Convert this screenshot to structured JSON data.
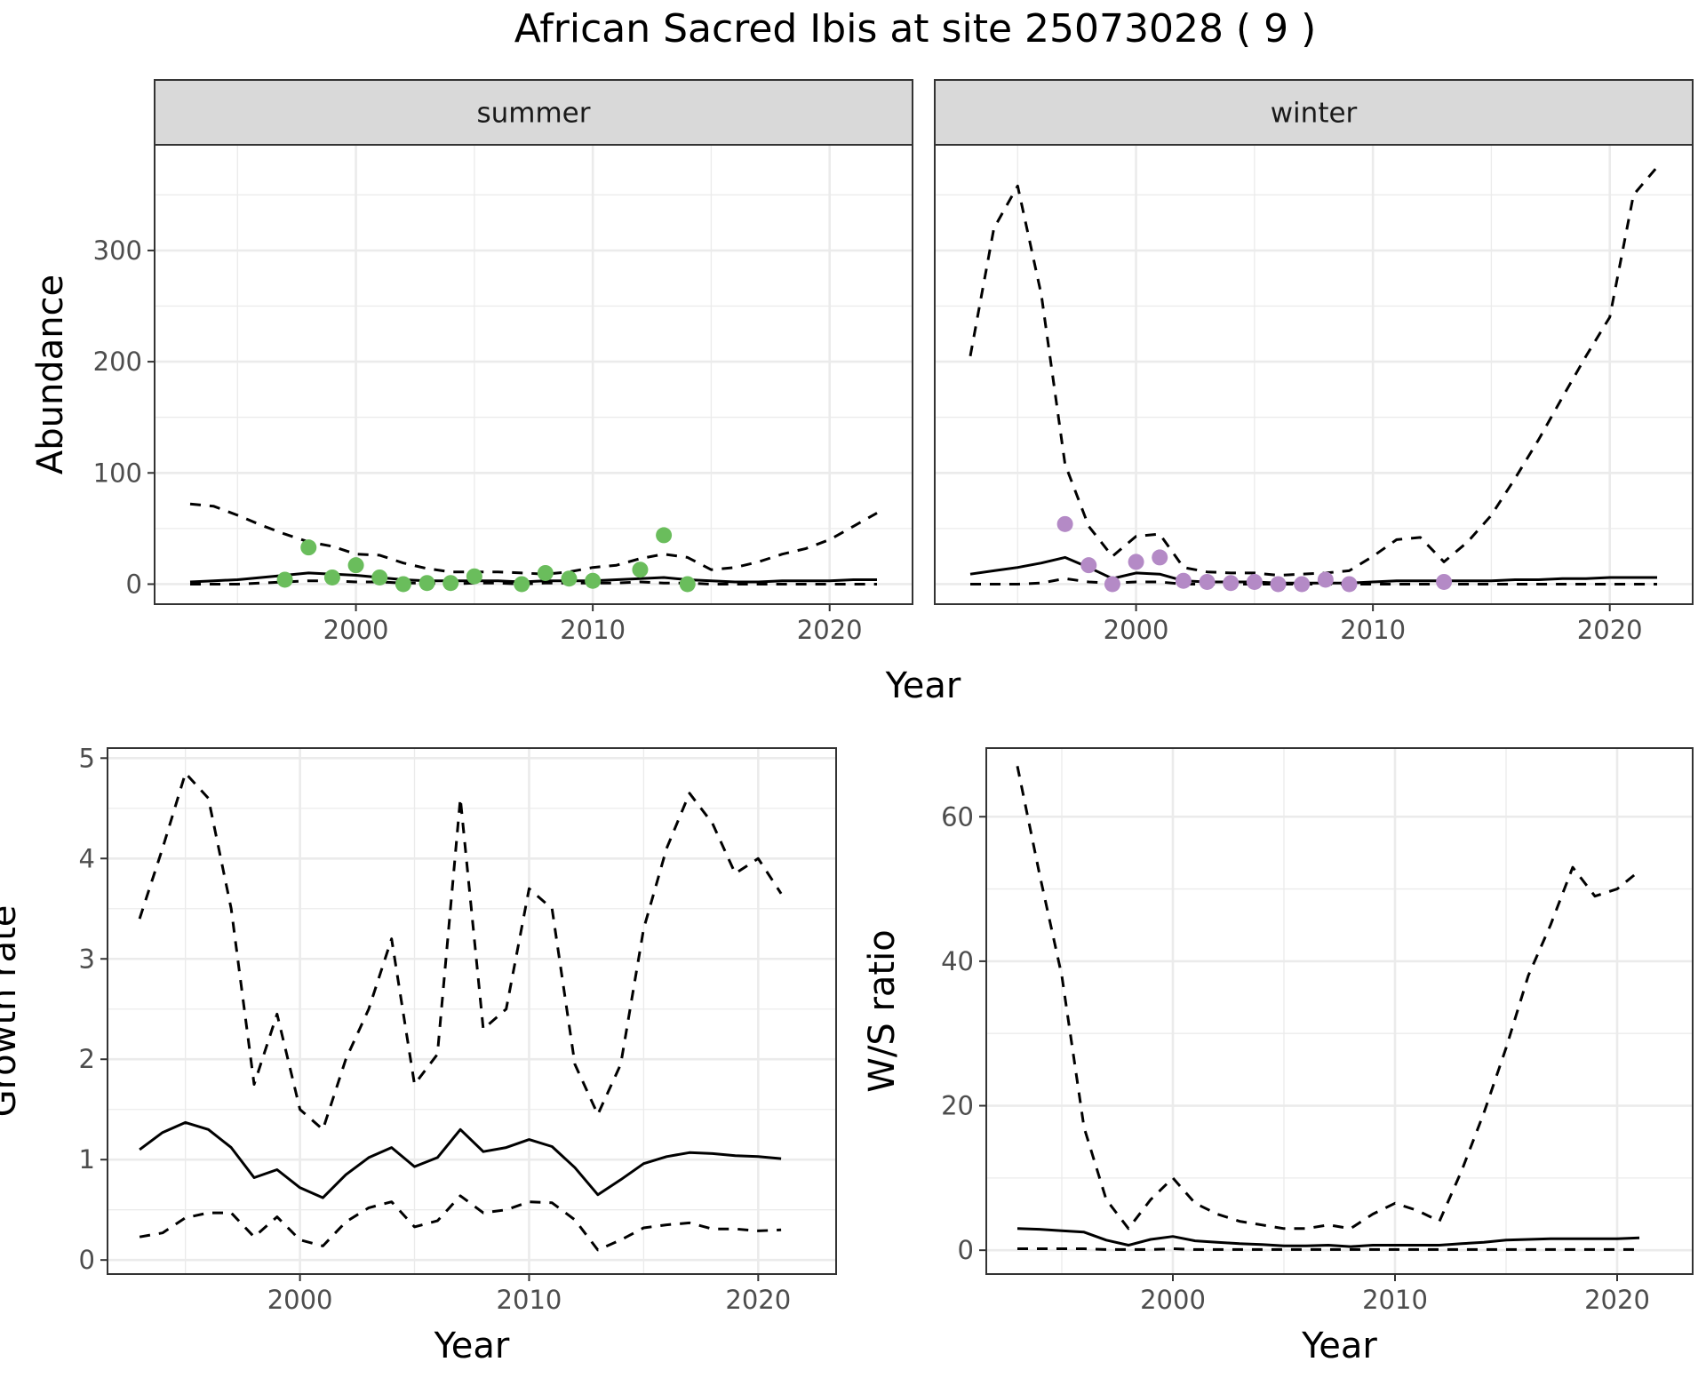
{
  "title": "African Sacred Ibis at site 25073028 ( 9 )",
  "colors": {
    "summer_points": "#6abd5c",
    "winter_points": "#b48ac6",
    "line": "#000000",
    "grid": "#ebebeb",
    "strip": "#d9d9d9",
    "axis_text": "#4d4d4d"
  },
  "chart_data": [
    {
      "type": "line",
      "panel": "summer",
      "strip_label": "summer",
      "ylabel": "Abundance",
      "xlabel": "Year",
      "xlim": [
        1991.5,
        2023.5
      ],
      "ylim": [
        -18,
        395
      ],
      "xticks": [
        2000,
        2010,
        2020
      ],
      "yticks": [
        0,
        100,
        200,
        300
      ],
      "grid": true,
      "series": [
        {
          "style": "dashed",
          "x": [
            1993,
            1994,
            1995,
            1996,
            1997,
            1998,
            1999,
            2000,
            2001,
            2002,
            2003,
            2004,
            2005,
            2006,
            2007,
            2008,
            2009,
            2010,
            2011,
            2012,
            2013,
            2014,
            2015,
            2016,
            2017,
            2018,
            2019,
            2020,
            2021,
            2022
          ],
          "y": [
            72,
            70,
            62,
            53,
            45,
            38,
            34,
            27,
            26,
            19,
            14,
            11,
            11,
            11,
            10,
            9,
            11,
            15,
            17,
            23,
            27,
            24,
            13,
            15,
            20,
            27,
            32,
            40,
            52,
            64
          ]
        },
        {
          "style": "solid",
          "x": [
            1993,
            1994,
            1995,
            1996,
            1997,
            1998,
            1999,
            2000,
            2001,
            2002,
            2003,
            2004,
            2005,
            2006,
            2007,
            2008,
            2009,
            2010,
            2011,
            2012,
            2013,
            2014,
            2015,
            2016,
            2017,
            2018,
            2019,
            2020,
            2021,
            2022
          ],
          "y": [
            2,
            3,
            4,
            6,
            8,
            10,
            9,
            8,
            6,
            4,
            3,
            3,
            3,
            3,
            2,
            3,
            3,
            3,
            4,
            5,
            6,
            4,
            3,
            2,
            2,
            3,
            3,
            3,
            4,
            4
          ]
        },
        {
          "style": "dashed",
          "x": [
            1993,
            1994,
            1995,
            1996,
            1997,
            1998,
            1999,
            2000,
            2001,
            2002,
            2003,
            2004,
            2005,
            2006,
            2007,
            2008,
            2009,
            2010,
            2011,
            2012,
            2013,
            2014,
            2015,
            2016,
            2017,
            2018,
            2019,
            2020,
            2021,
            2022
          ],
          "y": [
            0,
            0,
            0,
            1,
            2,
            3,
            3,
            2,
            2,
            1,
            1,
            0,
            1,
            1,
            0,
            1,
            1,
            1,
            1,
            2,
            1,
            1,
            0,
            0,
            0,
            0,
            0,
            0,
            0,
            0
          ]
        },
        {
          "style": "points",
          "x": [
            1997,
            1998,
            1999,
            2000,
            2001,
            2002,
            2003,
            2004,
            2005,
            2007,
            2008,
            2009,
            2010,
            2012,
            2013,
            2014
          ],
          "y": [
            4,
            33,
            6,
            17,
            6,
            0,
            1,
            1,
            7,
            0,
            10,
            5,
            3,
            13,
            44,
            0
          ]
        }
      ]
    },
    {
      "type": "line",
      "panel": "winter",
      "strip_label": "winter",
      "xlabel": "Year",
      "xlim": [
        1991.5,
        2023.5
      ],
      "ylim": [
        -18,
        395
      ],
      "xticks": [
        2000,
        2010,
        2020
      ],
      "yticks": [
        0,
        100,
        200,
        300
      ],
      "grid": true,
      "series": [
        {
          "style": "dashed",
          "x": [
            1993,
            1994,
            1995,
            1996,
            1997,
            1998,
            1999,
            2000,
            2001,
            2002,
            2003,
            2004,
            2005,
            2006,
            2007,
            2008,
            2009,
            2010,
            2011,
            2012,
            2013,
            2014,
            2015,
            2016,
            2017,
            2018,
            2019,
            2020,
            2021,
            2022
          ],
          "y": [
            205,
            320,
            358,
            260,
            108,
            52,
            25,
            43,
            45,
            15,
            11,
            10,
            10,
            8,
            9,
            10,
            12,
            25,
            40,
            42,
            20,
            38,
            62,
            95,
            130,
            168,
            205,
            240,
            350,
            375
          ]
        },
        {
          "style": "solid",
          "x": [
            1993,
            1994,
            1995,
            1996,
            1997,
            1998,
            1999,
            2000,
            2001,
            2002,
            2003,
            2004,
            2005,
            2006,
            2007,
            2008,
            2009,
            2010,
            2011,
            2012,
            2013,
            2014,
            2015,
            2016,
            2017,
            2018,
            2019,
            2020,
            2021,
            2022
          ],
          "y": [
            9,
            12,
            15,
            19,
            24,
            15,
            5,
            10,
            9,
            3,
            2,
            2,
            2,
            1,
            1,
            1,
            1,
            2,
            3,
            3,
            3,
            3,
            3,
            4,
            4,
            5,
            5,
            6,
            6,
            6
          ]
        },
        {
          "style": "dashed",
          "x": [
            1993,
            1994,
            1995,
            1996,
            1997,
            1998,
            1999,
            2000,
            2001,
            2002,
            2003,
            2004,
            2005,
            2006,
            2007,
            2008,
            2009,
            2010,
            2011,
            2012,
            2013,
            2014,
            2015,
            2016,
            2017,
            2018,
            2019,
            2020,
            2021,
            2022
          ],
          "y": [
            0,
            0,
            0,
            1,
            5,
            2,
            1,
            2,
            2,
            0,
            0,
            0,
            0,
            0,
            0,
            0,
            0,
            0,
            0,
            0,
            0,
            0,
            0,
            0,
            0,
            0,
            0,
            0,
            0,
            0
          ]
        },
        {
          "style": "points",
          "x": [
            1997,
            1998,
            1999,
            2000,
            2001,
            2002,
            2003,
            2004,
            2005,
            2006,
            2007,
            2008,
            2009,
            2013
          ],
          "y": [
            54,
            17,
            0,
            20,
            24,
            3,
            2,
            1,
            2,
            0,
            0,
            4,
            0,
            2
          ]
        }
      ]
    },
    {
      "type": "line",
      "panel": "growth",
      "ylabel": "Growth rate",
      "xlabel": "Year",
      "xlim": [
        1991.6,
        2023.4
      ],
      "ylim": [
        -0.14,
        5.1
      ],
      "xticks": [
        2000,
        2010,
        2020
      ],
      "yticks": [
        0,
        1,
        2,
        3,
        4,
        5
      ],
      "grid": true,
      "series": [
        {
          "style": "dashed",
          "x": [
            1993,
            1994,
            1995,
            1996,
            1997,
            1998,
            1999,
            2000,
            2001,
            2002,
            2003,
            2004,
            2005,
            2006,
            2007,
            2008,
            2009,
            2010,
            2011,
            2012,
            2013,
            2014,
            2015,
            2016,
            2017,
            2018,
            2019,
            2020,
            2021
          ],
          "y": [
            3.4,
            4.1,
            4.85,
            4.6,
            3.5,
            1.75,
            2.45,
            1.5,
            1.3,
            2.0,
            2.5,
            3.2,
            1.75,
            2.05,
            4.6,
            2.3,
            2.5,
            3.7,
            3.5,
            1.95,
            1.45,
            1.95,
            3.3,
            4.1,
            4.65,
            4.35,
            3.85,
            4.0,
            3.65
          ]
        },
        {
          "style": "solid",
          "x": [
            1993,
            1994,
            1995,
            1996,
            1997,
            1998,
            1999,
            2000,
            2001,
            2002,
            2003,
            2004,
            2005,
            2006,
            2007,
            2008,
            2009,
            2010,
            2011,
            2012,
            2013,
            2014,
            2015,
            2016,
            2017,
            2018,
            2019,
            2020,
            2021
          ],
          "y": [
            1.1,
            1.27,
            1.37,
            1.3,
            1.12,
            0.82,
            0.9,
            0.72,
            0.62,
            0.85,
            1.02,
            1.12,
            0.93,
            1.02,
            1.3,
            1.08,
            1.12,
            1.2,
            1.13,
            0.92,
            0.65,
            0.8,
            0.96,
            1.03,
            1.07,
            1.06,
            1.04,
            1.03,
            1.01
          ]
        },
        {
          "style": "dashed",
          "x": [
            1993,
            1994,
            1995,
            1996,
            1997,
            1998,
            1999,
            2000,
            2001,
            2002,
            2003,
            2004,
            2005,
            2006,
            2007,
            2008,
            2009,
            2010,
            2011,
            2012,
            2013,
            2014,
            2015,
            2016,
            2017,
            2018,
            2019,
            2020,
            2021
          ],
          "y": [
            0.23,
            0.27,
            0.42,
            0.47,
            0.47,
            0.23,
            0.43,
            0.2,
            0.14,
            0.38,
            0.52,
            0.58,
            0.33,
            0.39,
            0.64,
            0.47,
            0.5,
            0.58,
            0.57,
            0.4,
            0.1,
            0.2,
            0.32,
            0.35,
            0.37,
            0.31,
            0.31,
            0.29,
            0.3
          ]
        }
      ]
    },
    {
      "type": "line",
      "panel": "ratio",
      "ylabel": "W/S ratio",
      "xlabel": "Year",
      "xlim": [
        1991.6,
        2023.4
      ],
      "ylim": [
        -3.3,
        69.5
      ],
      "xticks": [
        2000,
        2010,
        2020
      ],
      "yticks": [
        0,
        20,
        40,
        60
      ],
      "grid": true,
      "series": [
        {
          "style": "dashed",
          "x": [
            1993,
            1994,
            1995,
            1996,
            1997,
            1998,
            1999,
            2000,
            2001,
            2002,
            2003,
            2004,
            2005,
            2006,
            2007,
            2008,
            2009,
            2010,
            2011,
            2012,
            2013,
            2014,
            2015,
            2016,
            2017,
            2018,
            2019,
            2020,
            2021
          ],
          "y": [
            67,
            52,
            38,
            17,
            7,
            3,
            7,
            10,
            6.5,
            5,
            4,
            3.5,
            3,
            3,
            3.5,
            3,
            5,
            6.5,
            5.5,
            4,
            11,
            19,
            28,
            38,
            45,
            53,
            49,
            50,
            52.5
          ]
        },
        {
          "style": "solid",
          "x": [
            1993,
            1994,
            1995,
            1996,
            1997,
            1998,
            1999,
            2000,
            2001,
            2002,
            2003,
            2004,
            2005,
            2006,
            2007,
            2008,
            2009,
            2010,
            2011,
            2012,
            2013,
            2014,
            2015,
            2016,
            2017,
            2018,
            2019,
            2020,
            2021
          ],
          "y": [
            3,
            2.9,
            2.7,
            2.5,
            1.4,
            0.7,
            1.5,
            1.9,
            1.3,
            1.1,
            0.9,
            0.8,
            0.6,
            0.6,
            0.7,
            0.5,
            0.7,
            0.7,
            0.7,
            0.7,
            0.9,
            1.1,
            1.4,
            1.5,
            1.6,
            1.6,
            1.6,
            1.6,
            1.7
          ]
        },
        {
          "style": "dashed",
          "x": [
            1993,
            1994,
            1995,
            1996,
            1997,
            1998,
            1999,
            2000,
            2001,
            2002,
            2003,
            2004,
            2005,
            2006,
            2007,
            2008,
            2009,
            2010,
            2011,
            2012,
            2013,
            2014,
            2015,
            2016,
            2017,
            2018,
            2019,
            2020,
            2021
          ],
          "y": [
            0.2,
            0.2,
            0.2,
            0.2,
            0.1,
            0.1,
            0.1,
            0.2,
            0.1,
            0.1,
            0.1,
            0.1,
            0.1,
            0.1,
            0.1,
            0.1,
            0.1,
            0.1,
            0.1,
            0.1,
            0.1,
            0.1,
            0.1,
            0.1,
            0.1,
            0.1,
            0.1,
            0.1,
            0.1
          ]
        }
      ]
    }
  ]
}
